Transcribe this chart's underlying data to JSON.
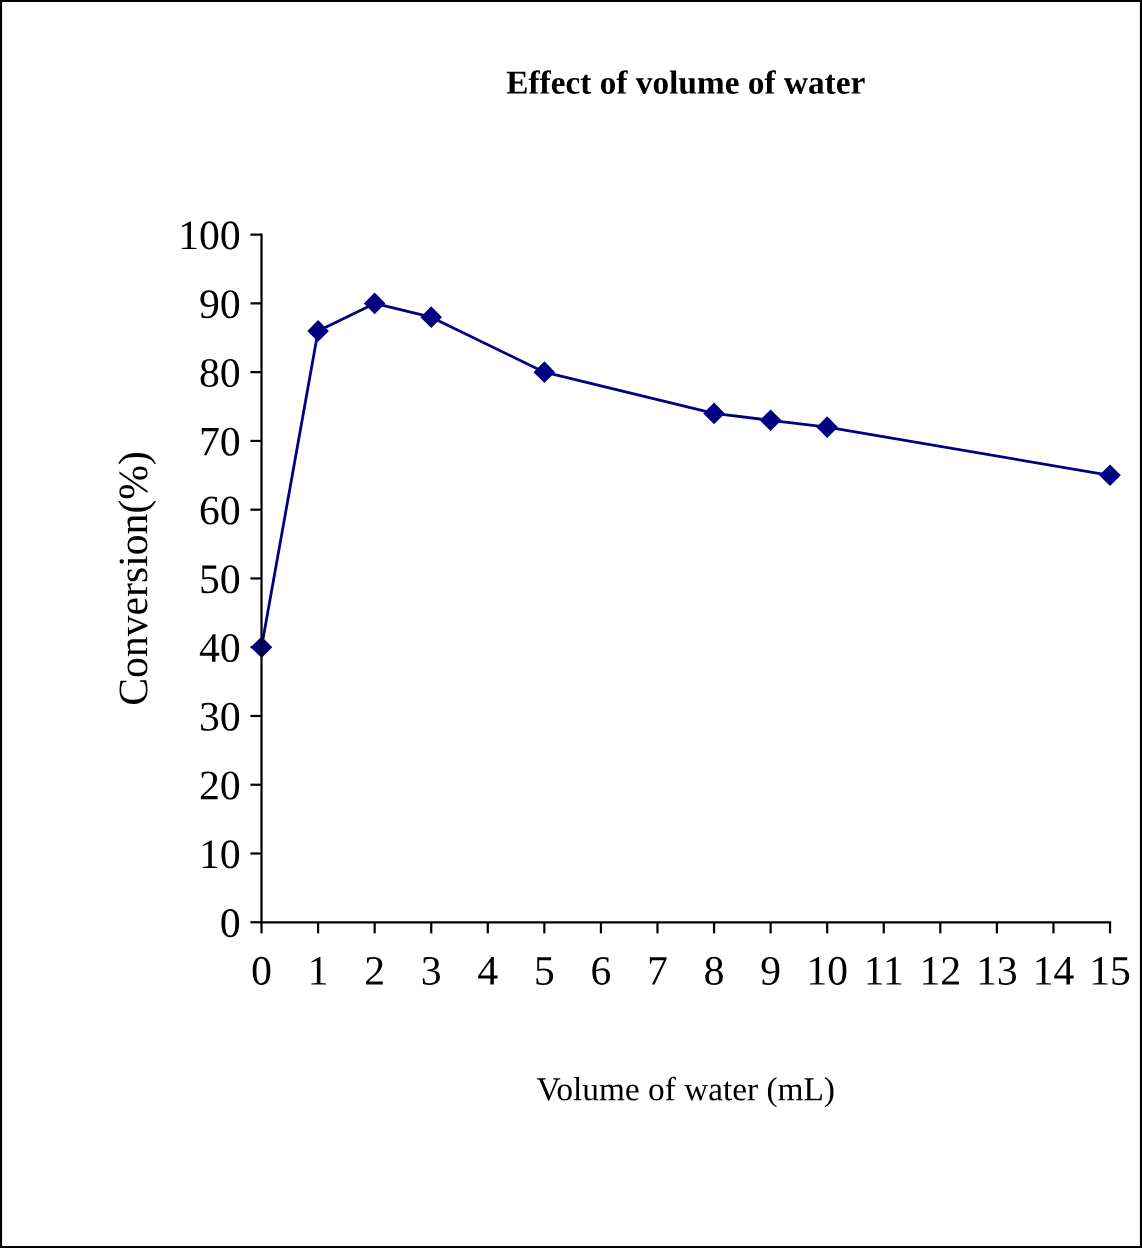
{
  "chart_data": {
    "type": "line",
    "title": "Effect of volume of water",
    "xlabel": "Volume of water (mL)",
    "ylabel": "Conversion(%)",
    "x": [
      0,
      1,
      2,
      3,
      5,
      8,
      9,
      10,
      15
    ],
    "series": [
      {
        "color": "#000080",
        "values": [
          40,
          86,
          90,
          88,
          80,
          74,
          73,
          72,
          65
        ]
      }
    ],
    "xlim": [
      0,
      15
    ],
    "xticks": [
      0,
      1,
      2,
      3,
      4,
      5,
      6,
      7,
      8,
      9,
      10,
      11,
      12,
      13,
      14,
      15
    ],
    "ylim": [
      0,
      100
    ],
    "yticks": [
      0,
      10,
      20,
      30,
      40,
      50,
      60,
      70,
      80,
      90,
      100
    ],
    "marker": "diamond",
    "line_style": "solid",
    "grid": false,
    "legend": false
  }
}
